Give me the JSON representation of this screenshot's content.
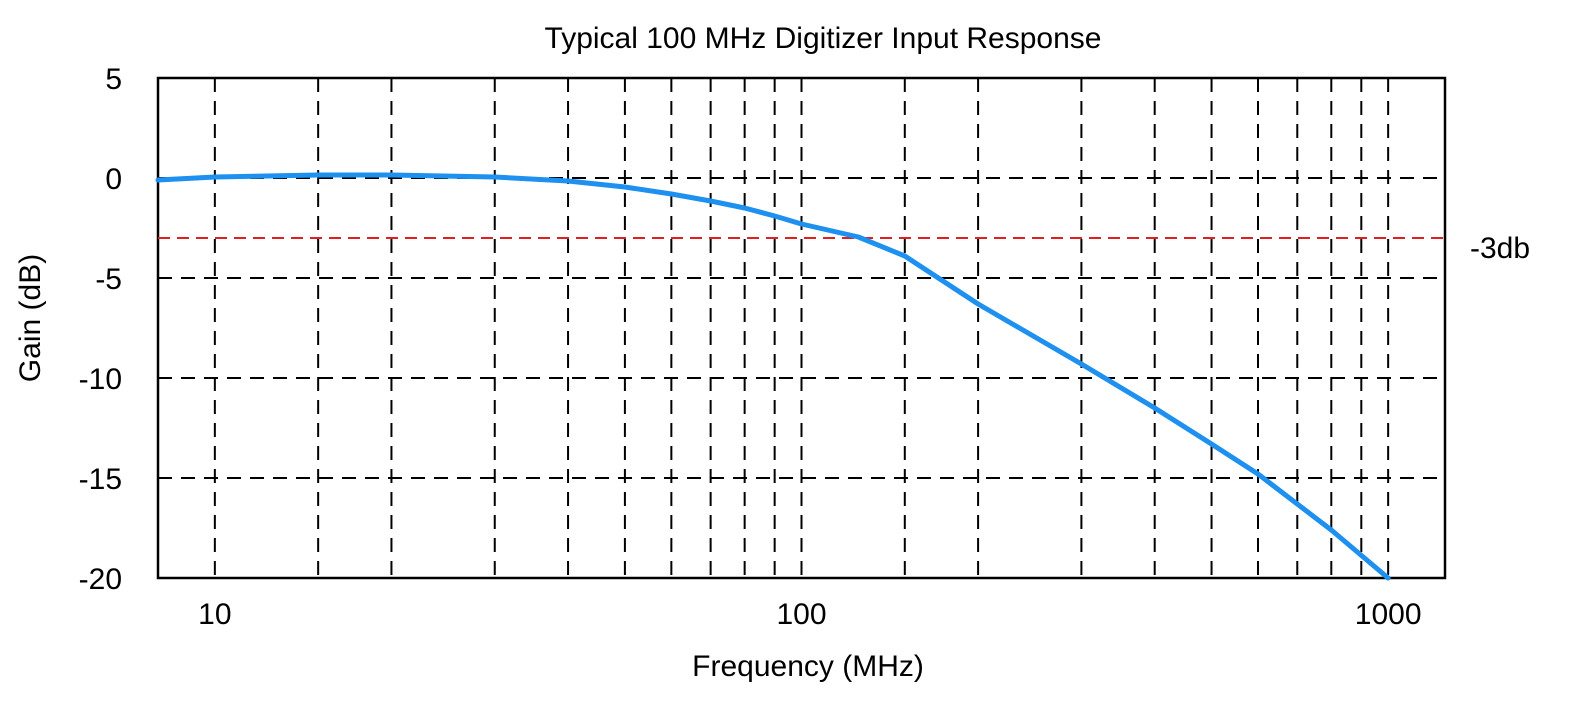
{
  "chart_data": {
    "type": "line",
    "title": "Typical 100 MHz Digitizer Input Response",
    "xlabel": "Frequency (MHz)",
    "ylabel": "Gain (dB)",
    "x_scale": "log",
    "xlim": [
      8,
      1250
    ],
    "ylim": [
      -20,
      5
    ],
    "x_ticks": [
      10,
      100,
      1000
    ],
    "x_tick_labels": [
      "10",
      "100",
      "1000"
    ],
    "y_ticks": [
      5,
      0,
      -5,
      -10,
      -15,
      -20
    ],
    "y_tick_labels": [
      "5",
      "0",
      "-5",
      "-10",
      "-15",
      "-20"
    ],
    "x_minor_gridlines": [
      10,
      15,
      20,
      30,
      40,
      50,
      60,
      70,
      80,
      90,
      100,
      150,
      200,
      300,
      400,
      500,
      600,
      700,
      800,
      900,
      1000
    ],
    "grid": true,
    "grid_style": "dashed",
    "reference_line": {
      "y": -3,
      "label": "-3db",
      "color": "#e02020"
    },
    "series": [
      {
        "color": "#1e90ef",
        "x": [
          8,
          10,
          15,
          20,
          30,
          40,
          50,
          60,
          70,
          80,
          90,
          100,
          125,
          150,
          200,
          300,
          400,
          500,
          600,
          800,
          1000
        ],
        "y": [
          -0.1,
          0.05,
          0.15,
          0.15,
          0.05,
          -0.15,
          -0.45,
          -0.8,
          -1.15,
          -1.5,
          -1.9,
          -2.3,
          -2.95,
          -3.9,
          -6.3,
          -9.3,
          -11.5,
          -13.3,
          -14.8,
          -17.6,
          -20.0
        ]
      }
    ]
  }
}
